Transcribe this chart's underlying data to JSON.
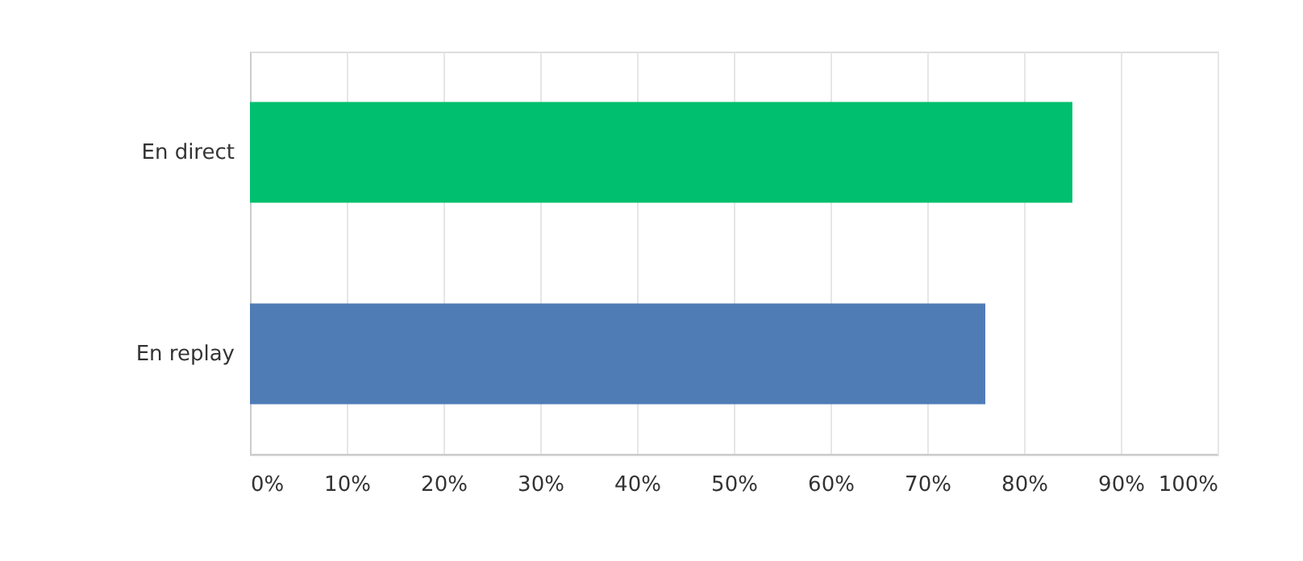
{
  "chart_data": {
    "type": "bar",
    "orientation": "horizontal",
    "categories": [
      "En direct",
      "En replay"
    ],
    "values": [
      85,
      76
    ],
    "colors": [
      "#00bf6f",
      "#507cb6"
    ],
    "xlim": [
      0,
      100
    ],
    "xticks": [
      {
        "value": 0,
        "label": "0%"
      },
      {
        "value": 10,
        "label": "10%"
      },
      {
        "value": 20,
        "label": "20%"
      },
      {
        "value": 30,
        "label": "30%"
      },
      {
        "value": 40,
        "label": "40%"
      },
      {
        "value": 50,
        "label": "50%"
      },
      {
        "value": 60,
        "label": "60%"
      },
      {
        "value": 70,
        "label": "70%"
      },
      {
        "value": 80,
        "label": "80%"
      },
      {
        "value": 90,
        "label": "90%"
      },
      {
        "value": 100,
        "label": "100%"
      }
    ],
    "grid": "x"
  }
}
